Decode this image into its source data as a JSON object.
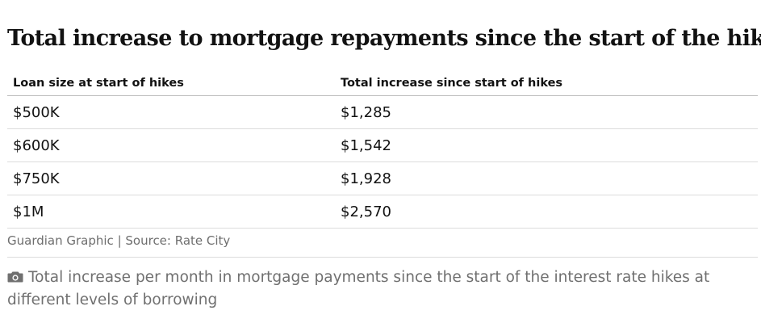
{
  "chart_data": {
    "type": "table",
    "title": "Total increase to mortgage repayments since the start of the hikes",
    "columns": [
      "Loan size at start of hikes",
      "Total increase since start of hikes"
    ],
    "rows": [
      [
        "$500K",
        "$1,285"
      ],
      [
        "$600K",
        "$1,542"
      ],
      [
        "$750K",
        "$1,928"
      ],
      [
        "$1M",
        "$2,570"
      ]
    ],
    "source": "Guardian Graphic | Source: Rate City"
  },
  "caption": {
    "icon": "camera-icon",
    "text": "Total increase per month in mortgage payments since the start of the interest rate hikes at different levels of borrowing"
  },
  "colors": {
    "text": "#121212",
    "muted": "#707070",
    "rule": "#dcdcdc"
  }
}
